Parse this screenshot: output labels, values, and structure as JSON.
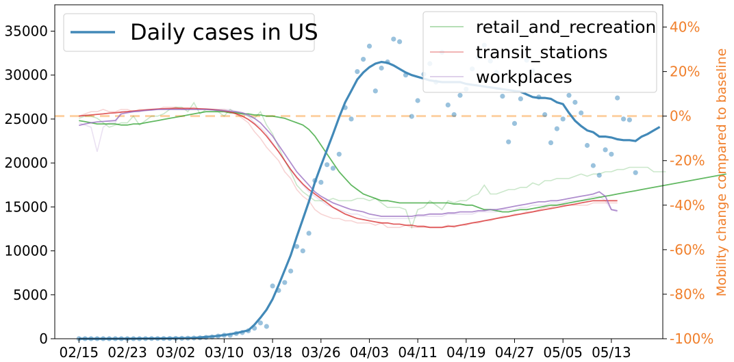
{
  "chart_data": {
    "type": "line",
    "left_axis": {
      "ylim": [
        0,
        38000
      ],
      "ticks": [
        "0",
        "5000",
        "10000",
        "15000",
        "20000",
        "25000",
        "30000",
        "35000"
      ],
      "tick_values": [
        0,
        5000,
        10000,
        15000,
        20000,
        25000,
        30000,
        35000
      ]
    },
    "right_axis": {
      "label": "Mobility change compared to baseline",
      "ylim": [
        -100,
        50
      ],
      "ticks": [
        "-100%",
        "-80%",
        "-60%",
        "-40%",
        "-20%",
        "0%",
        "20%",
        "40%"
      ],
      "tick_values": [
        -100,
        -80,
        -60,
        -40,
        -20,
        0,
        20,
        40
      ],
      "baseline": 0,
      "baseline_color": "#fdd0a2"
    },
    "x_axis": {
      "ticks": [
        "02/15",
        "02/23",
        "03/02",
        "03/10",
        "03/18",
        "03/26",
        "04/03",
        "04/11",
        "04/19",
        "04/27",
        "05/05",
        "05/13"
      ],
      "tick_days": [
        0,
        8,
        16,
        24,
        32,
        40,
        48,
        56,
        64,
        72,
        80,
        88
      ],
      "xlim": [
        -4,
        96.5
      ]
    },
    "legend_cases": {
      "label": "Daily cases in US",
      "placement": "top-left"
    },
    "legend_mobility": {
      "labels": [
        "retail_and_recreation",
        "transit_stations",
        "workplaces"
      ],
      "placement": "top-right"
    },
    "cases_scatter": {
      "color": "#1f77b4",
      "day0": 0,
      "values": [
        5,
        5,
        5,
        5,
        5,
        5,
        5,
        5,
        5,
        5,
        10,
        15,
        20,
        20,
        25,
        30,
        40,
        50,
        60,
        80,
        100,
        150,
        200,
        300,
        400,
        400,
        600,
        700,
        900,
        1200,
        1800,
        1400,
        6000,
        5500,
        6400,
        7700,
        10500,
        10000,
        12000,
        18000,
        17800,
        19800,
        19400,
        21000,
        26300,
        25000,
        30400,
        31800,
        33300,
        28200,
        30800,
        31500,
        34100,
        33800,
        30000,
        25300,
        27100,
        30100,
        31300,
        29200,
        32600,
        26600,
        25500,
        27700,
        28400,
        30700,
        32000,
        33400,
        31600,
        30300,
        27600,
        22400,
        24500,
        27300,
        31700,
        30500,
        27500,
        25500,
        22300,
        23900,
        25000,
        27700,
        26900,
        25700,
        22000,
        19700,
        18600,
        21500,
        21000,
        27400,
        25000,
        24900,
        18900
      ]
    },
    "cases_avg": {
      "color": "#4289b8",
      "day0": 0,
      "values": [
        0,
        0,
        0,
        0,
        0,
        0,
        0,
        10,
        10,
        10,
        20,
        20,
        30,
        30,
        40,
        50,
        60,
        70,
        80,
        100,
        150,
        200,
        260,
        330,
        420,
        520,
        640,
        800,
        950,
        1600,
        2400,
        3300,
        4500,
        6100,
        7800,
        9500,
        11600,
        13600,
        15600,
        17800,
        19700,
        21500,
        23300,
        25200,
        26900,
        28200,
        29500,
        30300,
        30900,
        31300,
        31500,
        31400,
        31100,
        30700,
        30300,
        30000,
        29800,
        29600,
        29400,
        29300,
        29200,
        29200,
        29200,
        29200,
        29000,
        28900,
        28800,
        28700,
        28600,
        28500,
        28400,
        28300,
        28200,
        28100,
        27800,
        27500,
        27400,
        27400,
        27300,
        26900,
        26700,
        25700,
        24800,
        24200,
        23700,
        23500,
        23000,
        23000,
        22900,
        22700,
        22600,
        22600,
        22500,
        23000,
        23300,
        23700,
        24100
      ]
    },
    "series": [
      {
        "name": "retail_and_recreation",
        "color": "#2ca02c",
        "day0": 0,
        "smooth": [
          -2,
          -2.5,
          -3,
          -3.5,
          -3.5,
          -3.5,
          -3.5,
          -4,
          -4,
          -3.5,
          -3.5,
          -3,
          -2.5,
          -2,
          -1.5,
          -1,
          -0.5,
          0,
          0.5,
          1,
          1.5,
          2,
          2,
          2,
          2,
          1.5,
          1.5,
          1,
          1,
          0.5,
          0.5,
          0,
          0,
          -0.5,
          -1,
          -2,
          -3,
          -4,
          -6,
          -9,
          -13,
          -17,
          -21,
          -25,
          -28,
          -31,
          -33,
          -35,
          -36,
          -37,
          -38,
          -38,
          -38.5,
          -39,
          -39,
          -39,
          -39,
          -39,
          -39,
          -39,
          -39,
          -39,
          -39.5,
          -39.5,
          -40,
          -40,
          -41,
          -42,
          -42,
          -42.5,
          -43,
          -43,
          -42.5,
          -42,
          -42,
          -41.5,
          -41,
          -40.5,
          -40,
          -40,
          -39.5,
          -39,
          -38.5,
          -38,
          -37.5,
          -37,
          -36.5,
          -36,
          -35.5,
          -35,
          -34.5,
          -34,
          -33.5,
          -33,
          -32.5,
          -32,
          -31.5,
          -31,
          -30.5,
          -30,
          -29.5,
          -29,
          -28.5,
          -28,
          -27.5,
          -27,
          -26.5,
          -26
        ],
        "raw": [
          -1,
          0,
          0,
          -1,
          -3,
          -5,
          -4,
          -3,
          -3,
          0,
          -4,
          -2,
          0,
          0,
          1,
          3,
          4,
          4,
          2,
          6,
          1,
          3,
          3,
          2,
          0,
          3,
          1,
          1,
          0,
          -1,
          2,
          -4,
          -8,
          -14,
          -20,
          -25,
          -31,
          -34,
          -36,
          -38,
          -38,
          -38,
          -37,
          -38,
          -38,
          -38,
          -37,
          -37,
          -38,
          -37,
          -39,
          -41,
          -41,
          -41,
          -42,
          -50,
          -42,
          -41,
          -38,
          -40,
          -42,
          -38,
          -39,
          -38,
          -38,
          -36,
          -35,
          -31,
          -35,
          -35,
          -34,
          -33,
          -33,
          -32,
          -32,
          -30,
          -31,
          -29,
          -29,
          -28,
          -28,
          -28,
          -27,
          -26,
          -27,
          -26,
          -26,
          -25,
          -25,
          -24,
          -24,
          -23,
          -23,
          -23,
          -23,
          -25,
          -25,
          -25
        ],
        "raw_opacity": 0.25
      },
      {
        "name": "transit_stations",
        "color": "#d62728",
        "day0": 0,
        "smooth": [
          0,
          0.3,
          0.5,
          0.8,
          1,
          1.3,
          1.5,
          1.8,
          2,
          2.3,
          2.5,
          2.7,
          3,
          3.2,
          3.3,
          3.4,
          3.5,
          3.5,
          3.5,
          3.4,
          3.3,
          3.2,
          3,
          2.7,
          2.3,
          1.8,
          1,
          0,
          -1.5,
          -3.5,
          -6,
          -9,
          -12.5,
          -16,
          -20,
          -24,
          -27.5,
          -30.5,
          -33,
          -35,
          -37,
          -39,
          -41,
          -42.5,
          -44,
          -45,
          -46,
          -46.5,
          -47,
          -47.5,
          -48,
          -48,
          -48.5,
          -48.5,
          -49,
          -49,
          -49.5,
          -49.5,
          -50,
          -50,
          -50,
          -49.5,
          -49.5,
          -49,
          -48.5,
          -48,
          -47.5,
          -47,
          -46.5,
          -46,
          -45.5,
          -45,
          -44.5,
          -44,
          -43.5,
          -43,
          -42.5,
          -42,
          -41.5,
          -41,
          -40.5,
          -40,
          -39.5,
          -39,
          -38.5,
          -38,
          -38,
          -38,
          -38,
          -38
        ],
        "raw": [
          0,
          1,
          2,
          2,
          3,
          2,
          2,
          3,
          3,
          2,
          3,
          3,
          3,
          3,
          4,
          4,
          4,
          3,
          3,
          4,
          3,
          3,
          3,
          3,
          3,
          2,
          1,
          -1,
          -3,
          -7,
          -10,
          -14,
          -17,
          -20,
          -25,
          -28,
          -33,
          -36,
          -38,
          -42,
          -44,
          -45,
          -46,
          -46,
          -47,
          -47,
          -48,
          -48,
          -48,
          -49,
          -48,
          -50,
          -50,
          -50,
          -49,
          -50,
          -50,
          -50,
          -50,
          -50,
          -50,
          -49,
          -50,
          -49,
          -49,
          -48,
          -48,
          -47,
          -47,
          -46,
          -45,
          -45,
          -44,
          -44,
          -43,
          -43,
          -42,
          -41,
          -41,
          -40,
          -40,
          -40,
          -40,
          -40,
          -40,
          -39,
          -39,
          -39,
          -39,
          -39
        ],
        "raw_opacity": 0.2
      },
      {
        "name": "workplaces",
        "color": "#9467bd",
        "day0": 0,
        "smooth": [
          -4.2,
          -3.5,
          -3,
          -2.6,
          -2.4,
          -2.2,
          -2,
          1,
          1.5,
          2,
          2.2,
          2.5,
          2.7,
          3,
          3,
          3,
          3,
          3,
          3,
          3,
          3,
          3,
          2.8,
          2.6,
          2.4,
          2.2,
          2,
          1.5,
          0.5,
          -1,
          -3,
          -6,
          -9,
          -13,
          -17,
          -21,
          -25,
          -28,
          -31,
          -34,
          -36,
          -37.5,
          -39,
          -40,
          -41,
          -42,
          -42.5,
          -43,
          -44,
          -44.5,
          -45,
          -45,
          -45,
          -45,
          -45,
          -45,
          -44.5,
          -44.5,
          -44,
          -44,
          -44,
          -43.5,
          -43.5,
          -43,
          -43,
          -43,
          -42.5,
          -42.5,
          -42,
          -42,
          -41.5,
          -41,
          -40.5,
          -40,
          -39.5,
          -39,
          -38.5,
          -38.5,
          -38,
          -38,
          -37.5,
          -37,
          -36.5,
          -36,
          -35.5,
          -35,
          -34,
          -36,
          -42,
          -42.5
        ],
        "raw": [
          -3,
          -4,
          -5,
          -16,
          -5,
          -3,
          -3,
          2,
          2,
          2,
          2,
          3,
          3,
          3,
          3,
          3,
          3,
          3,
          3,
          3,
          3,
          3,
          3,
          3,
          3,
          3,
          2,
          1,
          0,
          -3,
          -5,
          -8,
          -12,
          -16,
          -20,
          -24,
          -28,
          -31,
          -34,
          -36,
          -38,
          -40,
          -41,
          -42,
          -43,
          -44,
          -44,
          -45,
          -46,
          -46,
          -46,
          -46,
          -46,
          -46,
          -46,
          -46,
          -45,
          -45,
          -45,
          -45,
          -45,
          -44,
          -44,
          -44,
          -44,
          -44,
          -43,
          -43,
          -43,
          -43,
          -42,
          -42,
          -42,
          -41,
          -41,
          -40,
          -40,
          -40,
          -39,
          -39,
          -39,
          -38,
          -38,
          -38,
          -37,
          -36,
          -36,
          -38,
          -42,
          -43
        ],
        "raw_opacity": 0.2
      }
    ]
  }
}
